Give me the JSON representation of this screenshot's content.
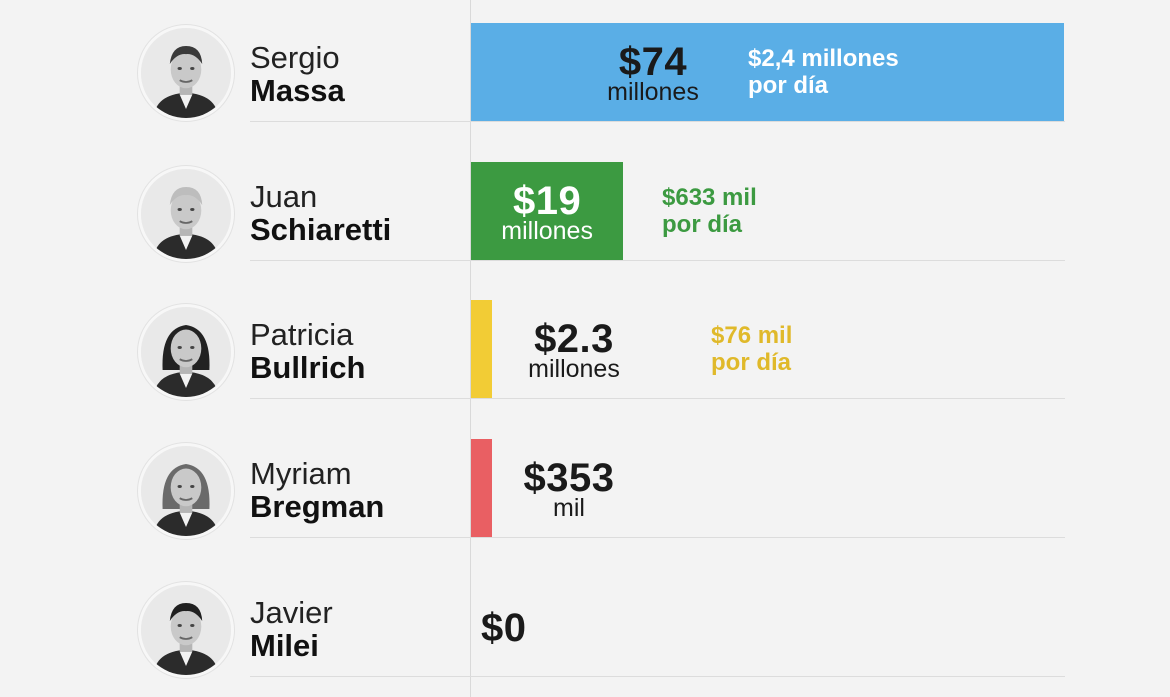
{
  "chart_data": {
    "type": "bar",
    "orientation": "horizontal",
    "xlim": [
      0,
      74000000
    ],
    "grid": false,
    "categories": [
      {
        "first": "Sergio",
        "last": "Massa",
        "value": 74000000,
        "amount": "$74",
        "unit": "millones",
        "per_day": "$2,4 millones",
        "per_day_suffix": "por día",
        "color": "#5aaee6",
        "label_color": "#1a1a1a",
        "per_day_color": "#ffffff",
        "avatar_icon": "man-suit-portrait"
      },
      {
        "first": "Juan",
        "last": "Schiaretti",
        "value": 19000000,
        "amount": "$19",
        "unit": "millones",
        "per_day": "$633 mil",
        "per_day_suffix": "por día",
        "color": "#3c9a41",
        "label_color": "#ffffff",
        "per_day_color": "#3c9a41",
        "avatar_icon": "older-man-portrait"
      },
      {
        "first": "Patricia",
        "last": "Bullrich",
        "value": 2300000,
        "amount": "$2.3",
        "unit": "millones",
        "per_day": "$76 mil",
        "per_day_suffix": "por día",
        "color": "#f2cc35",
        "label_color": "#1a1a1a",
        "per_day_color": "#e0b92a",
        "avatar_icon": "woman-dark-hair-portrait"
      },
      {
        "first": "Myriam",
        "last": "Bregman",
        "value": 353000,
        "amount": "$353",
        "unit": "mil",
        "per_day": "",
        "per_day_suffix": "",
        "color": "#e95f63",
        "label_color": "#1a1a1a",
        "per_day_color": "#1a1a1a",
        "avatar_icon": "woman-long-hair-portrait"
      },
      {
        "first": "Javier",
        "last": "Milei",
        "value": 0,
        "amount": "$0",
        "unit": "",
        "per_day": "",
        "per_day_suffix": "",
        "color": "#cccccc",
        "label_color": "#1a1a1a",
        "per_day_color": "#1a1a1a",
        "avatar_icon": "man-tie-portrait"
      }
    ]
  }
}
